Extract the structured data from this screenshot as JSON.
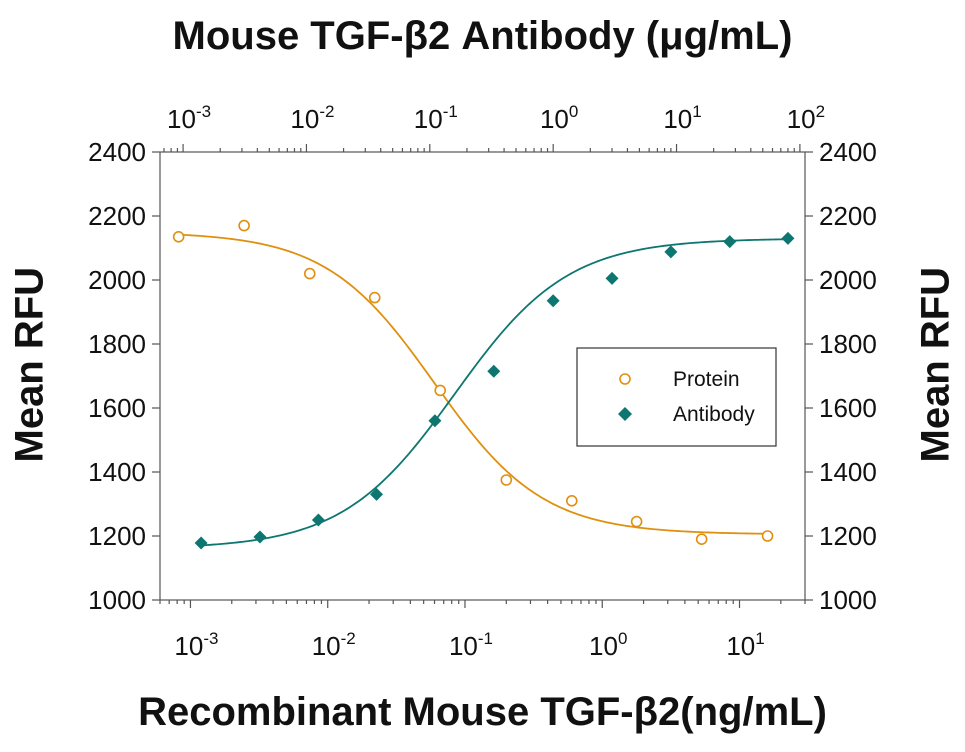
{
  "chart_data": {
    "type": "scatter",
    "title_top_axis": "Mouse TGF-β2 Antibody (μg/mL)",
    "xlabel": "Recombinant Mouse TGF-β2(ng/mL)",
    "ylabel_left": "Mean RFU",
    "ylabel_right": "Mean RFU",
    "x_scale": "log",
    "xlim_bottom": [
      0.0006,
      30
    ],
    "xlim_top": [
      0.00065,
      110
    ],
    "ylim": [
      1000,
      2400
    ],
    "y_ticks": [
      1000,
      1200,
      1400,
      1600,
      1800,
      2000,
      2200,
      2400
    ],
    "x_ticks_bottom": [
      {
        "value": 0.001,
        "base": "10",
        "exp": "-3"
      },
      {
        "value": 0.01,
        "base": "10",
        "exp": "-2"
      },
      {
        "value": 0.1,
        "base": "10",
        "exp": "-1"
      },
      {
        "value": 1,
        "base": "10",
        "exp": "0"
      },
      {
        "value": 10,
        "base": "10",
        "exp": "1"
      }
    ],
    "x_ticks_top": [
      {
        "value": 0.001,
        "base": "10",
        "exp": "-3"
      },
      {
        "value": 0.01,
        "base": "10",
        "exp": "-2"
      },
      {
        "value": 0.1,
        "base": "10",
        "exp": "-1"
      },
      {
        "value": 1,
        "base": "10",
        "exp": "0"
      },
      {
        "value": 10,
        "base": "10",
        "exp": "1"
      },
      {
        "value": 100,
        "base": "10",
        "exp": "2"
      }
    ],
    "legend_position": "right",
    "series": [
      {
        "name": "Protein",
        "axis": "bottom",
        "marker": "open-circle",
        "color": "#e0900f",
        "x": [
          0.00082,
          0.00246,
          0.0074,
          0.022,
          0.066,
          0.2,
          0.6,
          1.78,
          5.3,
          16
        ],
        "y": [
          2135,
          2170,
          2020,
          1945,
          1655,
          1375,
          1310,
          1245,
          1190,
          1200
        ],
        "fit": {
          "top": 2150,
          "bottom": 1205,
          "ec50": 0.06,
          "hill": 1.1
        }
      },
      {
        "name": "Antibody",
        "axis": "top",
        "marker": "filled-diamond",
        "color": "#0e7670",
        "x": [
          0.0014,
          0.0042,
          0.0125,
          0.037,
          0.11,
          0.33,
          1.0,
          3.0,
          9.0,
          27,
          80
        ],
        "y": [
          1178,
          1197,
          1250,
          1330,
          1560,
          1715,
          1935,
          2005,
          2088,
          2120,
          2130
        ],
        "fit": {
          "top": 2130,
          "bottom": 1160,
          "ec50": 0.16,
          "hill": 0.95
        }
      }
    ]
  }
}
